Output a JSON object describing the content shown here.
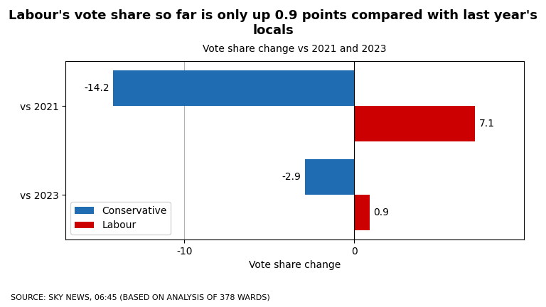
{
  "chart_data": {
    "type": "bar",
    "orientation": "horizontal",
    "title": "Labour's vote share so far is only up 0.9 points compared with last year's locals",
    "subtitle": "Vote share change vs 2021 and 2023",
    "source": "SOURCE: SKY NEWS, 06:45 (BASED ON ANALYSIS OF 378 WARDS)",
    "x_label": "Vote share change",
    "categories": [
      "vs 2021",
      "vs 2023"
    ],
    "series": [
      {
        "name": "Conservative",
        "color": "#1f6cb2",
        "values": [
          -14.2,
          -2.9
        ]
      },
      {
        "name": "Labour",
        "color": "#cc0000",
        "values": [
          7.1,
          0.9
        ]
      }
    ],
    "xlim": [
      -17,
      10
    ],
    "xticks": [
      -10,
      0
    ],
    "grid": true,
    "legend": "lower left",
    "data_labels": true
  }
}
